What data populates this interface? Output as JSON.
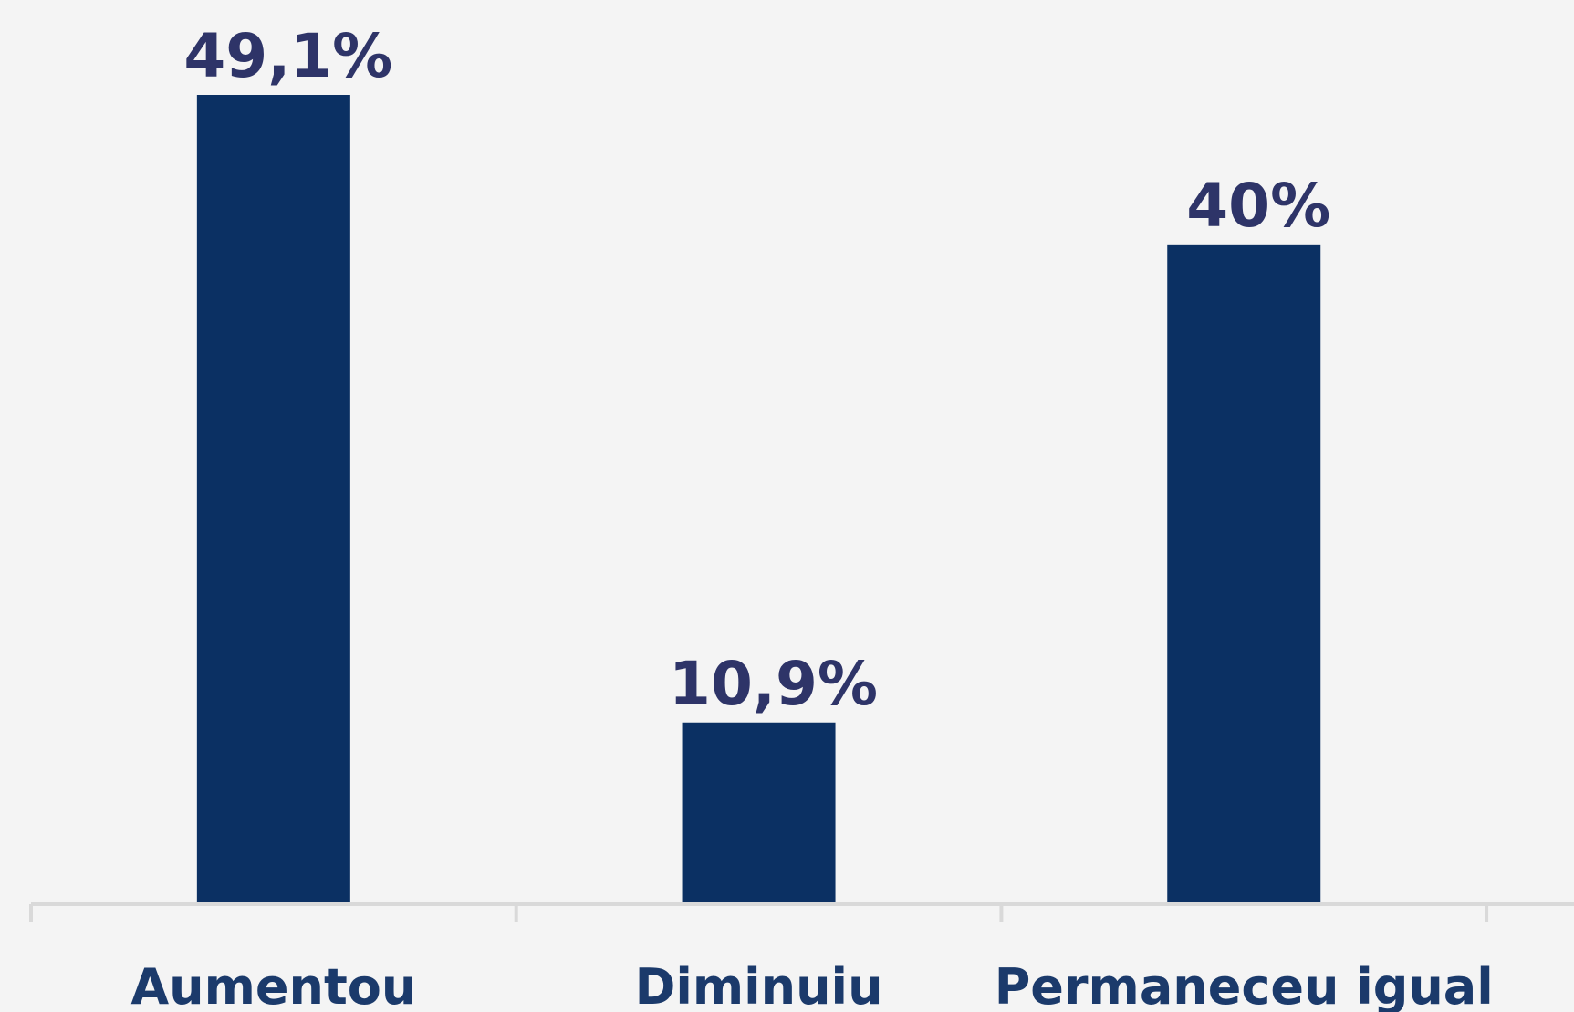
{
  "chart_data": {
    "type": "bar",
    "categories": [
      "Aumentou",
      "Diminuiu",
      "Permaneceu igual"
    ],
    "values": [
      49.1,
      10.9,
      40
    ],
    "value_labels": [
      "49,1%",
      "10,9%",
      "40%"
    ],
    "color": "#0b3063"
  }
}
